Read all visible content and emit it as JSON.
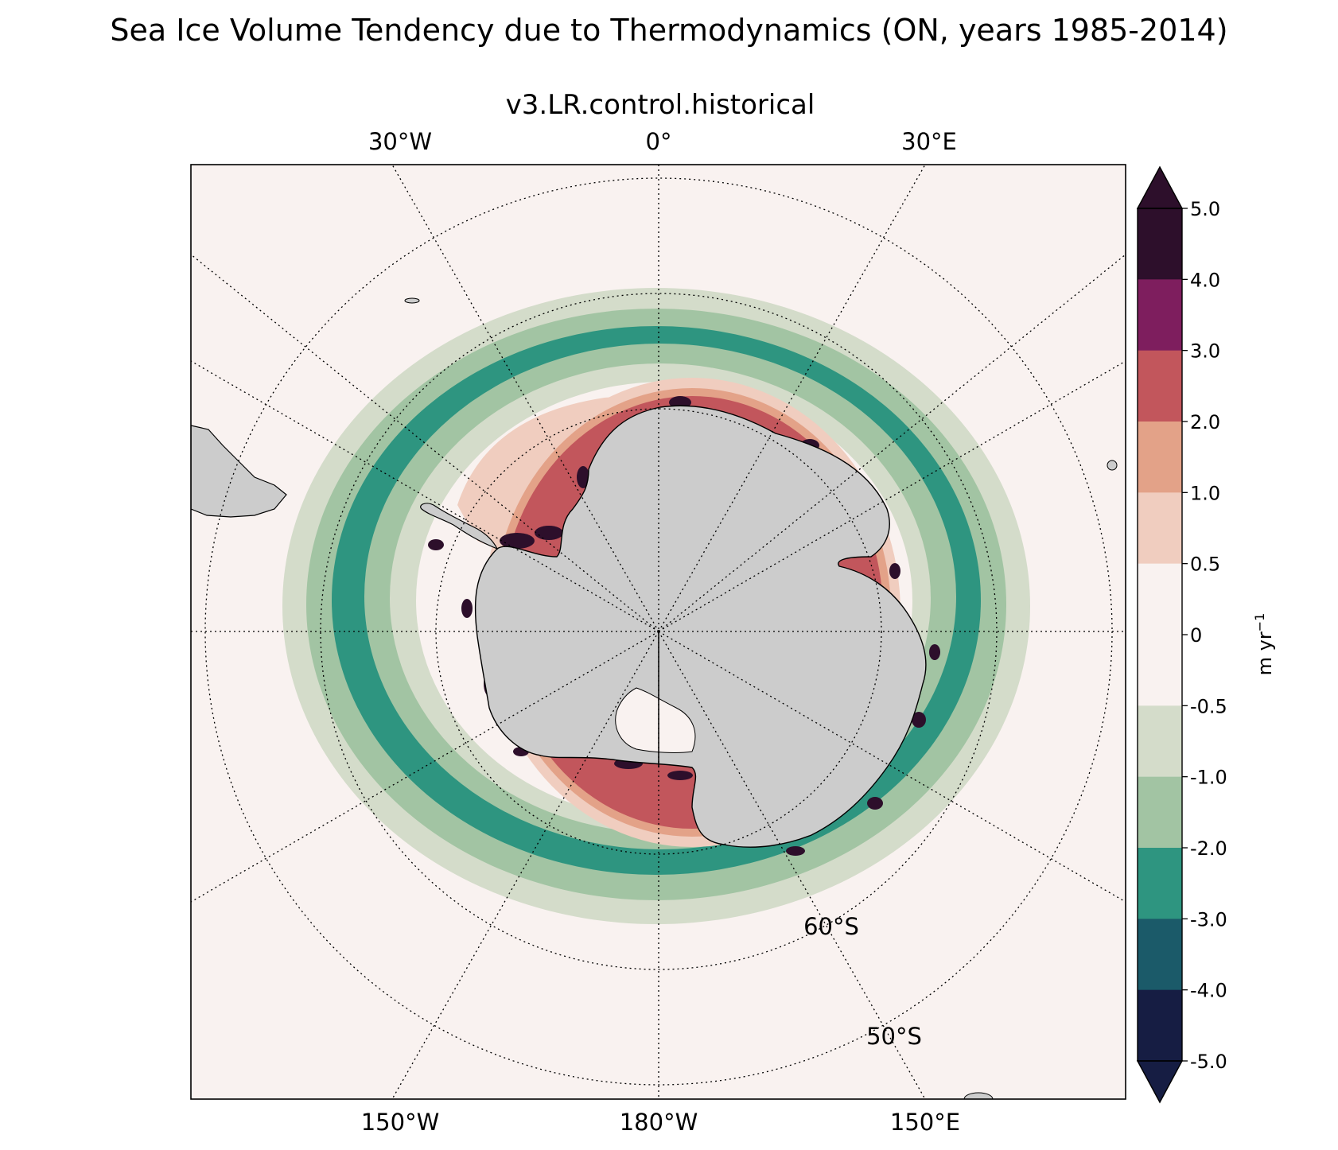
{
  "title": "Sea Ice Volume Tendency due to Thermodynamics (ON, years 1985-2014)",
  "subtitle": "v3.LR.control.historical",
  "colors": {
    "ocean_background": "#f9f2f0",
    "land": "#cccccc",
    "coastline": "#000000"
  },
  "map": {
    "projection": "south polar stereographic",
    "gridlines": "dotted",
    "longitude_labels_top": [
      "30°W",
      "0°",
      "30°E"
    ],
    "longitude_labels_bottom": [
      "150°W",
      "180°W",
      "150°E"
    ],
    "latitude_labels": [
      "60°S",
      "50°S"
    ]
  },
  "colorbar": {
    "label": "m yr",
    "label_superscript": "−1",
    "extend": "both",
    "levels": [
      {
        "value": "5.0",
        "color": "#2d0f2b"
      },
      {
        "value": "4.0",
        "color": "#7e1e5e"
      },
      {
        "value": "3.0",
        "color": "#c2565c"
      },
      {
        "value": "2.0",
        "color": "#e3a288"
      },
      {
        "value": "1.0",
        "color": "#f0cdbf"
      },
      {
        "value": "0.5",
        "color": "#f9f2f0"
      },
      {
        "value": "0",
        "color": "#f9f2f0"
      },
      {
        "value": "-0.5",
        "color": "#d4dcca"
      },
      {
        "value": "-1.0",
        "color": "#a2c4a3"
      },
      {
        "value": "-2.0",
        "color": "#2e9580"
      },
      {
        "value": "-3.0",
        "color": "#1b5a69"
      },
      {
        "value": "-4.0",
        "color": "#161d43"
      },
      {
        "value": "-5.0",
        "color": ""
      }
    ]
  }
}
